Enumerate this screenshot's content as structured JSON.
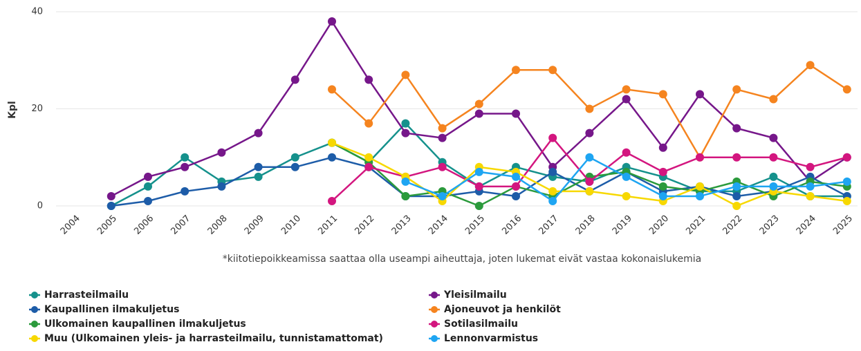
{
  "chart_data": {
    "type": "line",
    "y_label": "Kpl",
    "note": "*kiitotiepoikkeamissa saattaa olla useampi aiheuttaja, joten lukemat eivät vastaa kokonaislukemia",
    "categories": [
      "2004",
      "2005",
      "2006",
      "2007",
      "2008",
      "2009",
      "2010",
      "2011",
      "2012",
      "2013",
      "2014",
      "2015",
      "2016",
      "2017",
      "2018",
      "2019",
      "2020",
      "2021",
      "2022",
      "2023",
      "2024",
      "2025"
    ],
    "ylim": [
      0,
      40
    ],
    "yticks": [
      0,
      20,
      40
    ],
    "grid": true,
    "series": [
      {
        "name": "Harrasteilmailu",
        "color": "#15918c",
        "values": [
          null,
          0,
          4,
          10,
          5,
          6,
          10,
          13,
          9,
          17,
          9,
          4,
          8,
          6,
          5,
          8,
          6,
          3,
          3,
          6,
          2,
          2
        ]
      },
      {
        "name": "Yleisilmailu",
        "color": "#76178a",
        "values": [
          null,
          2,
          6,
          8,
          11,
          15,
          26,
          38,
          26,
          15,
          14,
          19,
          19,
          8,
          15,
          22,
          12,
          23,
          16,
          14,
          5,
          10
        ]
      },
      {
        "name": "Kaupallinen ilmakuljetus",
        "color": "#1d5ca8",
        "values": [
          null,
          0,
          1,
          3,
          4,
          8,
          8,
          10,
          8,
          2,
          2,
          3,
          2,
          7,
          3,
          7,
          3,
          4,
          2,
          3,
          6,
          2
        ]
      },
      {
        "name": "Ajoneuvot ja henkilöt",
        "color": "#f5841f",
        "values": [
          null,
          null,
          null,
          null,
          null,
          null,
          null,
          24,
          17,
          27,
          16,
          21,
          28,
          28,
          20,
          24,
          23,
          10,
          24,
          22,
          29,
          24
        ]
      },
      {
        "name": "Ulkomainen kaupallinen ilmakuljetus",
        "color": "#2b9a3c",
        "values": [
          null,
          null,
          null,
          null,
          null,
          null,
          null,
          13,
          9,
          2,
          3,
          0,
          4,
          2,
          6,
          7,
          4,
          3,
          5,
          2,
          5,
          4
        ]
      },
      {
        "name": "Sotilasilmailu",
        "color": "#d3167f",
        "values": [
          null,
          null,
          null,
          null,
          null,
          null,
          null,
          1,
          8,
          6,
          8,
          4,
          4,
          14,
          5,
          11,
          7,
          10,
          10,
          10,
          8,
          10
        ]
      },
      {
        "name": "Muu (Ulkomainen yleis- ja harrasteilmailu, tunnistamattomat)",
        "color": "#f7d800",
        "values": [
          null,
          null,
          null,
          null,
          null,
          null,
          null,
          13,
          10,
          6,
          1,
          8,
          7,
          3,
          3,
          2,
          1,
          4,
          0,
          3,
          2,
          1
        ]
      },
      {
        "name": "Lennonvarmistus",
        "color": "#1ea5f2",
        "values": [
          null,
          null,
          null,
          null,
          null,
          null,
          null,
          null,
          null,
          5,
          2,
          7,
          6,
          1,
          10,
          6,
          2,
          2,
          4,
          4,
          4,
          5
        ]
      }
    ]
  }
}
